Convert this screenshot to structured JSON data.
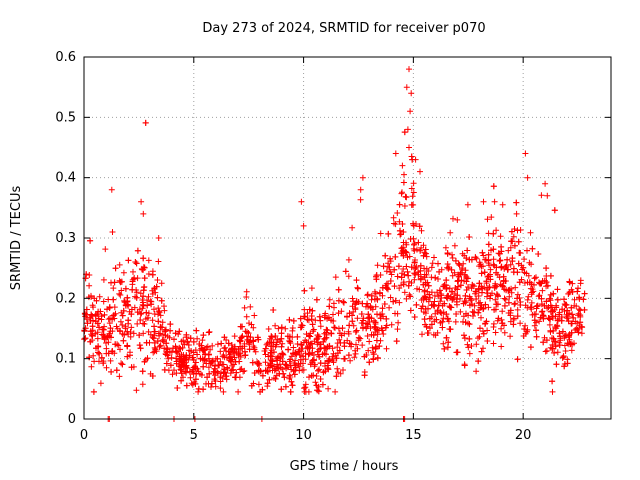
{
  "chart_data": {
    "type": "scatter",
    "title": "Day 273 of 2024, SRMTID for receiver p070",
    "xlabel": "GPS time / hours",
    "ylabel": "SRMTID / TECUs",
    "xlim": [
      0,
      24
    ],
    "ylim": [
      0,
      0.6
    ],
    "x_ticks": [
      0,
      5,
      10,
      15,
      20
    ],
    "x_tick_labels": [
      "0",
      "5",
      "10",
      "15",
      "20"
    ],
    "y_ticks": [
      0,
      0.1,
      0.2,
      0.3,
      0.4,
      0.5,
      0.6
    ],
    "y_tick_labels": [
      "0",
      "0.1",
      "0.2",
      "0.3",
      "0.4",
      "0.5",
      "0.6"
    ],
    "grid": true,
    "marker": "+",
    "color": "#ff0000",
    "series": [
      {
        "name": "SRMTID",
        "trend": [
          [
            0.0,
            0.19,
            0.04
          ],
          [
            0.5,
            0.14,
            0.04
          ],
          [
            1.0,
            0.15,
            0.04
          ],
          [
            1.5,
            0.17,
            0.05
          ],
          [
            2.0,
            0.18,
            0.05
          ],
          [
            2.5,
            0.2,
            0.06
          ],
          [
            3.0,
            0.17,
            0.05
          ],
          [
            3.5,
            0.15,
            0.04
          ],
          [
            4.0,
            0.11,
            0.02
          ],
          [
            4.5,
            0.1,
            0.02
          ],
          [
            5.0,
            0.09,
            0.02
          ],
          [
            5.5,
            0.1,
            0.025
          ],
          [
            6.0,
            0.09,
            0.02
          ],
          [
            6.5,
            0.1,
            0.025
          ],
          [
            7.0,
            0.1,
            0.025
          ],
          [
            7.5,
            0.13,
            0.04
          ],
          [
            8.0,
            0.08,
            0.02
          ],
          [
            8.5,
            0.11,
            0.03
          ],
          [
            9.0,
            0.1,
            0.03
          ],
          [
            9.5,
            0.11,
            0.03
          ],
          [
            10.0,
            0.12,
            0.04
          ],
          [
            10.5,
            0.11,
            0.03
          ],
          [
            11.0,
            0.12,
            0.03
          ],
          [
            11.5,
            0.13,
            0.04
          ],
          [
            12.0,
            0.15,
            0.04
          ],
          [
            12.5,
            0.17,
            0.05
          ],
          [
            13.0,
            0.15,
            0.04
          ],
          [
            13.5,
            0.2,
            0.05
          ],
          [
            14.0,
            0.24,
            0.05
          ],
          [
            14.5,
            0.28,
            0.07
          ],
          [
            15.0,
            0.3,
            0.07
          ],
          [
            15.5,
            0.22,
            0.04
          ],
          [
            16.0,
            0.19,
            0.03
          ],
          [
            16.5,
            0.2,
            0.04
          ],
          [
            17.0,
            0.22,
            0.05
          ],
          [
            17.5,
            0.2,
            0.05
          ],
          [
            18.0,
            0.19,
            0.05
          ],
          [
            18.5,
            0.22,
            0.05
          ],
          [
            19.0,
            0.23,
            0.05
          ],
          [
            19.5,
            0.24,
            0.05
          ],
          [
            20.0,
            0.22,
            0.05
          ],
          [
            20.5,
            0.2,
            0.05
          ],
          [
            21.0,
            0.19,
            0.05
          ],
          [
            21.5,
            0.15,
            0.04
          ],
          [
            22.0,
            0.15,
            0.04
          ],
          [
            22.5,
            0.17,
            0.03
          ],
          [
            22.8,
            0.18,
            0.02
          ]
        ],
        "samples_per_hour": 120,
        "seed": 273,
        "peaks": [
          [
            14.8,
            0.58
          ],
          [
            14.7,
            0.55
          ],
          [
            14.9,
            0.54
          ],
          [
            14.85,
            0.51
          ],
          [
            14.75,
            0.48
          ],
          [
            14.8,
            0.45
          ],
          [
            14.2,
            0.44
          ],
          [
            14.5,
            0.42
          ],
          [
            15.1,
            0.43
          ],
          [
            15.3,
            0.41
          ],
          [
            12.7,
            0.4
          ],
          [
            12.6,
            0.38
          ],
          [
            20.1,
            0.44
          ],
          [
            20.2,
            0.4
          ],
          [
            21.0,
            0.39
          ],
          [
            21.1,
            0.37
          ],
          [
            2.6,
            0.36
          ],
          [
            2.7,
            0.34
          ],
          [
            9.9,
            0.36
          ],
          [
            10.0,
            0.32
          ],
          [
            3.4,
            0.3
          ],
          [
            19.7,
            0.34
          ],
          [
            18.7,
            0.36
          ],
          [
            1.3,
            0.31
          ],
          [
            17.0,
            0.33
          ]
        ],
        "zeros": [
          1.1,
          1.15,
          4.1,
          5.05,
          8.1,
          14.55,
          14.6
        ]
      }
    ]
  }
}
